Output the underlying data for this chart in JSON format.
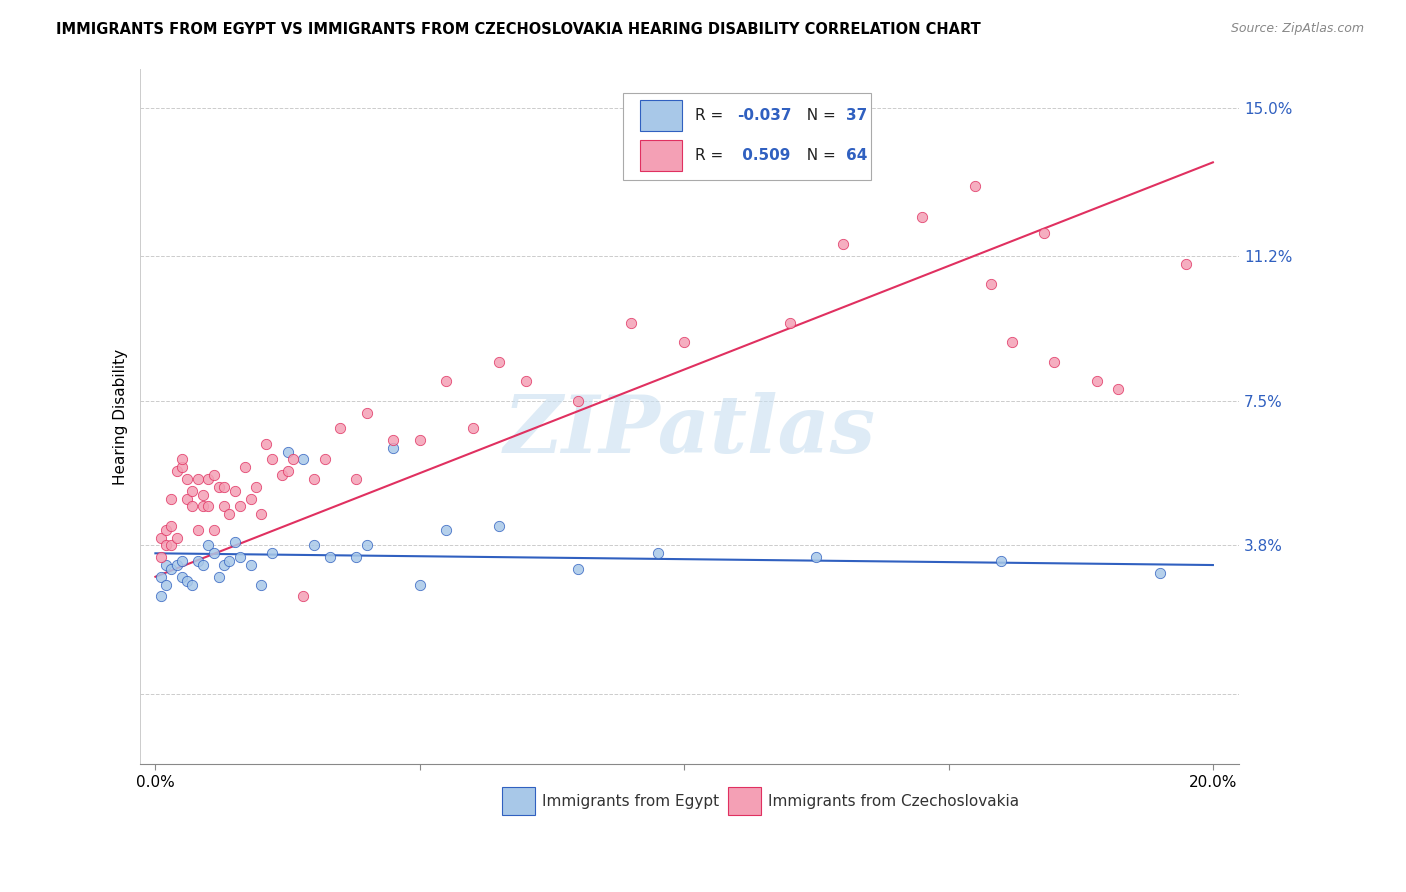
{
  "title": "IMMIGRANTS FROM EGYPT VS IMMIGRANTS FROM CZECHOSLOVAKIA HEARING DISABILITY CORRELATION CHART",
  "source": "Source: ZipAtlas.com",
  "ylabel": "Hearing Disability",
  "yticks": [
    0.0,
    0.038,
    0.075,
    0.112,
    0.15
  ],
  "ytick_labels": [
    "",
    "3.8%",
    "7.5%",
    "11.2%",
    "15.0%"
  ],
  "xticks": [
    0.0,
    0.05,
    0.1,
    0.15,
    0.2
  ],
  "xtick_labels": [
    "0.0%",
    "",
    "",
    "",
    "20.0%"
  ],
  "xlim": [
    -0.003,
    0.205
  ],
  "ylim": [
    -0.018,
    0.16
  ],
  "color_egypt": "#a8c8e8",
  "color_czech": "#f4a0b5",
  "color_egypt_line": "#3060c0",
  "color_czech_line": "#e03060",
  "watermark": "ZIPatlas",
  "egypt_scatter_x": [
    0.001,
    0.001,
    0.002,
    0.002,
    0.003,
    0.004,
    0.005,
    0.005,
    0.006,
    0.007,
    0.008,
    0.009,
    0.01,
    0.011,
    0.012,
    0.013,
    0.014,
    0.015,
    0.016,
    0.018,
    0.02,
    0.022,
    0.025,
    0.028,
    0.03,
    0.033,
    0.038,
    0.04,
    0.045,
    0.05,
    0.055,
    0.065,
    0.08,
    0.095,
    0.125,
    0.16,
    0.19
  ],
  "egypt_scatter_y": [
    0.03,
    0.025,
    0.033,
    0.028,
    0.032,
    0.033,
    0.034,
    0.03,
    0.029,
    0.028,
    0.034,
    0.033,
    0.038,
    0.036,
    0.03,
    0.033,
    0.034,
    0.039,
    0.035,
    0.033,
    0.028,
    0.036,
    0.062,
    0.06,
    0.038,
    0.035,
    0.035,
    0.038,
    0.063,
    0.028,
    0.042,
    0.043,
    0.032,
    0.036,
    0.035,
    0.034,
    0.031
  ],
  "czech_scatter_x": [
    0.001,
    0.001,
    0.002,
    0.002,
    0.003,
    0.003,
    0.003,
    0.004,
    0.004,
    0.005,
    0.005,
    0.006,
    0.006,
    0.007,
    0.007,
    0.008,
    0.008,
    0.009,
    0.009,
    0.01,
    0.01,
    0.011,
    0.011,
    0.012,
    0.013,
    0.013,
    0.014,
    0.015,
    0.016,
    0.017,
    0.018,
    0.019,
    0.02,
    0.021,
    0.022,
    0.024,
    0.025,
    0.026,
    0.028,
    0.03,
    0.032,
    0.035,
    0.038,
    0.04,
    0.045,
    0.05,
    0.055,
    0.06,
    0.065,
    0.07,
    0.08,
    0.09,
    0.1,
    0.12,
    0.13,
    0.145,
    0.155,
    0.158,
    0.162,
    0.168,
    0.17,
    0.178,
    0.182,
    0.195
  ],
  "czech_scatter_y": [
    0.035,
    0.04,
    0.038,
    0.042,
    0.038,
    0.043,
    0.05,
    0.04,
    0.057,
    0.058,
    0.06,
    0.05,
    0.055,
    0.048,
    0.052,
    0.055,
    0.042,
    0.051,
    0.048,
    0.048,
    0.055,
    0.042,
    0.056,
    0.053,
    0.048,
    0.053,
    0.046,
    0.052,
    0.048,
    0.058,
    0.05,
    0.053,
    0.046,
    0.064,
    0.06,
    0.056,
    0.057,
    0.06,
    0.025,
    0.055,
    0.06,
    0.068,
    0.055,
    0.072,
    0.065,
    0.065,
    0.08,
    0.068,
    0.085,
    0.08,
    0.075,
    0.095,
    0.09,
    0.095,
    0.115,
    0.122,
    0.13,
    0.105,
    0.09,
    0.118,
    0.085,
    0.08,
    0.078,
    0.11
  ],
  "egypt_line_x": [
    0.0,
    0.2
  ],
  "egypt_line_y": [
    0.036,
    0.033
  ],
  "czech_line_x": [
    0.0,
    0.2
  ],
  "czech_line_y": [
    0.03,
    0.136
  ]
}
